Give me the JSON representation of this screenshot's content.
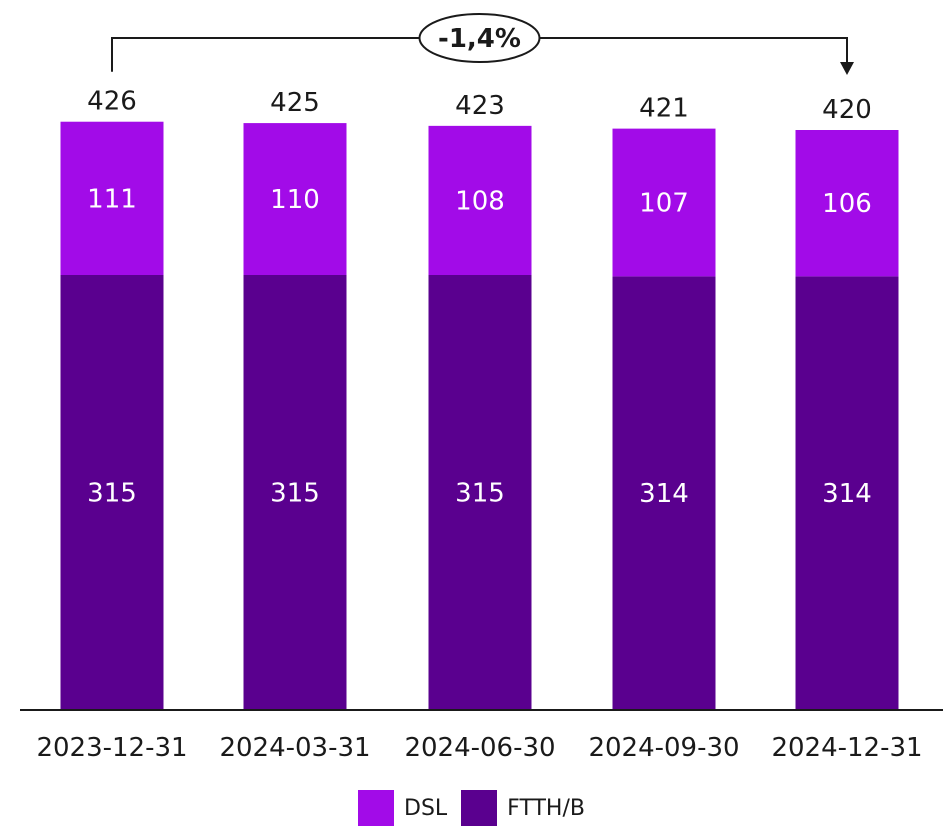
{
  "chart_data": {
    "type": "bar",
    "stacked": true,
    "categories": [
      "2023-12-31",
      "2024-03-31",
      "2024-06-30",
      "2024-09-30",
      "2024-12-31"
    ],
    "series": [
      {
        "name": "FTTH/B",
        "color": "#5a008f",
        "values": [
          315,
          315,
          315,
          314,
          314
        ]
      },
      {
        "name": "DSL",
        "color": "#a20be8",
        "values": [
          111,
          110,
          108,
          107,
          106
        ]
      }
    ],
    "totals": [
      426,
      425,
      423,
      421,
      420
    ],
    "change_annotation": {
      "label": "-1,4%",
      "from_category": "2023-12-31",
      "to_category": "2024-12-31"
    },
    "legend_position": "bottom-center",
    "grid": false
  }
}
